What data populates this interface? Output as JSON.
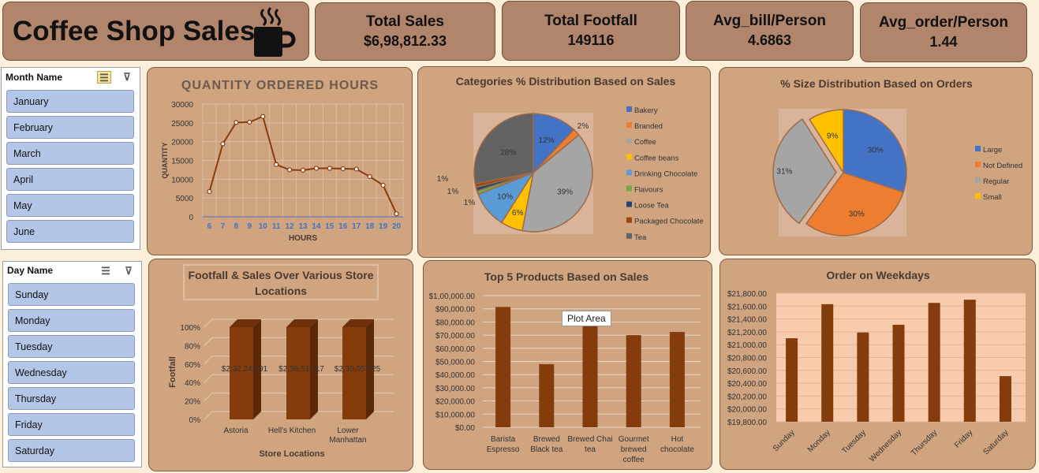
{
  "header": {
    "title": "Coffee Shop Sales",
    "icon": "coffee-mug-icon"
  },
  "kpis": [
    {
      "label": "Total Sales",
      "value": "$6,98,812.33"
    },
    {
      "label": "Total Footfall",
      "value": "149116"
    },
    {
      "label": "Avg_bill/Person",
      "value": "4.6863"
    },
    {
      "label": "Avg_order/Person",
      "value": "1.44"
    }
  ],
  "month_slicer": {
    "title": "Month Name",
    "items": [
      "January",
      "February",
      "March",
      "April",
      "May",
      "June"
    ]
  },
  "day_slicer": {
    "title": "Day Name",
    "items": [
      "Sunday",
      "Monday",
      "Tuesday",
      "Wednesday",
      "Thursday",
      "Friday",
      "Saturday"
    ]
  },
  "tooltip": "Plot Area",
  "colors": {
    "line": "#8b3a0f",
    "bar": "#843c0c",
    "blue": "#4472c4",
    "orange": "#ed7d31",
    "gray": "#a5a5a5",
    "gold": "#ffc000",
    "lightblue": "#5b9bd5",
    "green": "#70ad47",
    "navy": "#264478",
    "darkred": "#9e480e",
    "darkgray": "#636363"
  },
  "chart_data": [
    {
      "type": "line",
      "title": "QUANTITY ORDERED HOURS",
      "xlabel": "HOURS",
      "ylabel": "QUANTITY",
      "x": [
        6,
        7,
        8,
        9,
        10,
        11,
        12,
        13,
        14,
        15,
        16,
        17,
        18,
        19,
        20
      ],
      "y": [
        6700,
        19400,
        25100,
        25200,
        26700,
        13900,
        12500,
        12400,
        12900,
        12900,
        12800,
        12700,
        10700,
        8400,
        800
      ],
      "ylim": [
        0,
        30000
      ],
      "yticks": [
        "0",
        "5000",
        "10000",
        "15000",
        "20000",
        "25000",
        "30000"
      ],
      "grid": true
    },
    {
      "type": "pie",
      "title": "Categories % Distribution Based on Sales",
      "legend": "right",
      "labels": [
        "Bakery",
        "Branded",
        "Coffee",
        "Coffee beans",
        "Drinking Chocolate",
        "Flavours",
        "Loose Tea",
        "Packaged Chocolate",
        "Tea"
      ],
      "values": [
        12,
        2,
        39,
        6,
        10,
        1,
        1,
        1,
        28
      ],
      "data_labels": [
        "12%",
        "2%",
        "39%",
        "6%",
        "10%",
        "1%",
        "1%",
        "1%",
        "28%"
      ]
    },
    {
      "type": "pie",
      "title": "% Size Distribution Based on Orders",
      "legend": "right",
      "labels": [
        "Large",
        "Not Defined",
        "Regular",
        "Small"
      ],
      "values": [
        30,
        30,
        31,
        9
      ],
      "data_labels": [
        "30%",
        "30%",
        "31%",
        "9%"
      ]
    },
    {
      "type": "bar",
      "title": "Footfall & Sales Over Various Store Locations",
      "xlabel": "Store Locations",
      "ylabel": "Footfall",
      "categories": [
        "Astoria",
        "Hell's Kitchen",
        "Lower Manhattan"
      ],
      "values": [
        100,
        100,
        100
      ],
      "data_labels": [
        "$2,32,243.91",
        "$2,36,511.17",
        "$2,30,057.25"
      ],
      "ylim": [
        0,
        100
      ],
      "yticks": [
        "0%",
        "20%",
        "40%",
        "60%",
        "80%",
        "100%"
      ]
    },
    {
      "type": "bar",
      "title": "Top 5 Products Based on Sales",
      "categories": [
        "Barista Espresso",
        "Brewed Black tea",
        "Brewed Chai tea",
        "Gourmet brewed coffee",
        "Hot chocolate"
      ],
      "values": [
        91400,
        47900,
        77100,
        70000,
        72400
      ],
      "ylim": [
        0,
        100000
      ],
      "yticks": [
        "$0.00",
        "$10,000.00",
        "$20,000.00",
        "$30,000.00",
        "$40,000.00",
        "$50,000.00",
        "$60,000.00",
        "$70,000.00",
        "$80,000.00",
        "$90,000.00",
        "$1,00,000.00"
      ]
    },
    {
      "type": "bar",
      "title": "Order on Weekdays",
      "categories": [
        "Sunday",
        "Monday",
        "Tuesday",
        "Wednesday",
        "Thursday",
        "Friday",
        "Saturday"
      ],
      "values": [
        21100,
        21630,
        21190,
        21310,
        21650,
        21700,
        20510
      ],
      "ylim": [
        19800,
        21800
      ],
      "yticks": [
        "$19,800.00",
        "$20,000.00",
        "$20,200.00",
        "$20,400.00",
        "$20,600.00",
        "$20,800.00",
        "$21,000.00",
        "$21,200.00",
        "$21,400.00",
        "$21,600.00",
        "$21,800.00"
      ]
    }
  ]
}
